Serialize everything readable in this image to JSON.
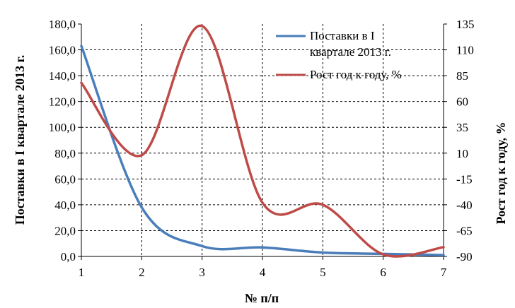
{
  "chart_data": {
    "type": "line",
    "x": [
      1,
      2,
      3,
      4,
      5,
      6,
      7
    ],
    "xlabel": "№ п/п",
    "ylabel": "Поставки в I квартале 2013 г.",
    "y2label": "Рост год к году, %",
    "xlim": [
      1,
      7
    ],
    "ylim": [
      0,
      180
    ],
    "y2lim": [
      -90,
      135
    ],
    "x_ticks": [
      "1",
      "2",
      "3",
      "4",
      "5",
      "6",
      "7"
    ],
    "y_ticks": [
      "0,0",
      "20,0",
      "40,0",
      "60,0",
      "80,0",
      "100,0",
      "120,0",
      "140,0",
      "160,0",
      "180,0"
    ],
    "y2_ticks": [
      "-90",
      "-65",
      "-40",
      "-15",
      "10",
      "35",
      "60",
      "85",
      "110",
      "135"
    ],
    "grid": "dashed",
    "legend_position": "top-right",
    "series": [
      {
        "name": "Поставки в I квартале 2013 г.",
        "axis": "left",
        "color": "#4a7ebb",
        "values": [
          163,
          38,
          8,
          7,
          3,
          2,
          1
        ]
      },
      {
        "name": "Рост год к году, %",
        "axis": "right",
        "color": "#be4b48",
        "values": [
          78,
          8,
          133,
          -38,
          -40,
          -88,
          -81
        ]
      }
    ]
  }
}
